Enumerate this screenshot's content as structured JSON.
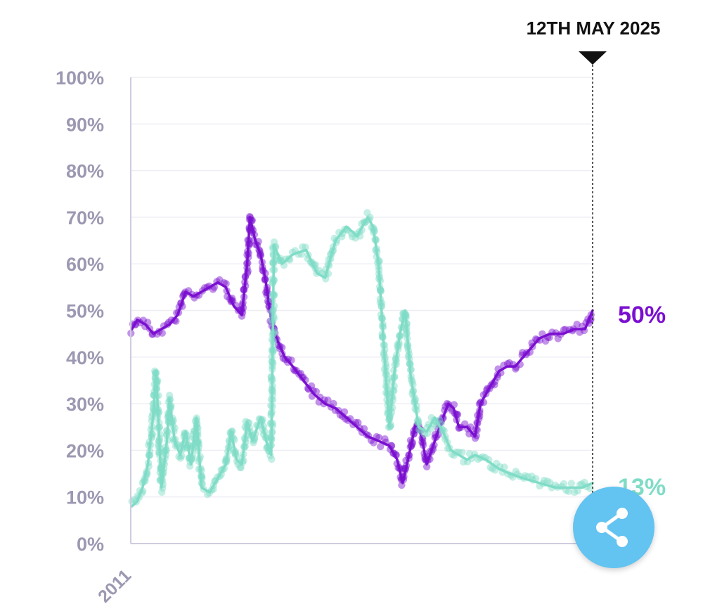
{
  "colors": {
    "purple": "#7b0fd0",
    "teal": "#7fdcc6",
    "axis_text": "#9d98b2",
    "marker_text": "#111111",
    "share_button": "#63c3f1"
  },
  "share": {
    "icon": "share-icon"
  },
  "chart_data": {
    "type": "line",
    "y_unit": "%",
    "ylim": [
      0,
      100
    ],
    "y_ticks": [
      "0%",
      "10%",
      "20%",
      "30%",
      "40%",
      "50%",
      "60%",
      "70%",
      "80%",
      "90%",
      "100%"
    ],
    "x_tick_label": "2011",
    "grid": true,
    "marker": {
      "label": "12TH MAY 2025",
      "date": "2025-05-12"
    },
    "end_labels": {
      "purple": "50%",
      "teal": "13%"
    },
    "series": [
      {
        "key": "purple",
        "points": [
          [
            "2011-01",
            46
          ],
          [
            "2011-03",
            48
          ],
          [
            "2011-06",
            47
          ],
          [
            "2011-09",
            45
          ],
          [
            "2011-12",
            46
          ],
          [
            "2012-03",
            47
          ],
          [
            "2012-06",
            49
          ],
          [
            "2012-09",
            54
          ],
          [
            "2012-12",
            53
          ],
          [
            "2013-03",
            54
          ],
          [
            "2013-06",
            55
          ],
          [
            "2013-09",
            56
          ],
          [
            "2013-12",
            55
          ],
          [
            "2014-03",
            51
          ],
          [
            "2014-06",
            49
          ],
          [
            "2014-08",
            60
          ],
          [
            "2014-09",
            70
          ],
          [
            "2014-11",
            65
          ],
          [
            "2015-01",
            62
          ],
          [
            "2015-03",
            56
          ],
          [
            "2015-05",
            48
          ],
          [
            "2015-07",
            44
          ],
          [
            "2015-10",
            40
          ],
          [
            "2016-01",
            38
          ],
          [
            "2016-05",
            35
          ],
          [
            "2016-09",
            32
          ],
          [
            "2017-01",
            30
          ],
          [
            "2017-05",
            29
          ],
          [
            "2017-09",
            27
          ],
          [
            "2018-01",
            25
          ],
          [
            "2018-05",
            23
          ],
          [
            "2018-09",
            22
          ],
          [
            "2019-01",
            21
          ],
          [
            "2019-04",
            18
          ],
          [
            "2019-06",
            13
          ],
          [
            "2019-08",
            18
          ],
          [
            "2019-11",
            26
          ],
          [
            "2020-01",
            23
          ],
          [
            "2020-03",
            17
          ],
          [
            "2020-06",
            22
          ],
          [
            "2020-09",
            27
          ],
          [
            "2020-11",
            30
          ],
          [
            "2021-01",
            29
          ],
          [
            "2021-03",
            25
          ],
          [
            "2021-06",
            25
          ],
          [
            "2021-09",
            23
          ],
          [
            "2021-11",
            30
          ],
          [
            "2022-03",
            34
          ],
          [
            "2022-06",
            37
          ],
          [
            "2022-09",
            38
          ],
          [
            "2022-12",
            38
          ],
          [
            "2023-03",
            40
          ],
          [
            "2023-06",
            42
          ],
          [
            "2023-09",
            44
          ],
          [
            "2024-01",
            45
          ],
          [
            "2024-06",
            45
          ],
          [
            "2024-10",
            46
          ],
          [
            "2025-02",
            46
          ],
          [
            "2025-05-12",
            50
          ]
        ]
      },
      {
        "key": "teal",
        "points": [
          [
            "2011-01",
            8
          ],
          [
            "2011-03",
            9
          ],
          [
            "2011-05",
            12
          ],
          [
            "2011-07",
            17
          ],
          [
            "2011-09",
            28
          ],
          [
            "2011-10",
            37
          ],
          [
            "2011-11",
            25
          ],
          [
            "2011-12",
            12
          ],
          [
            "2012-02",
            22
          ],
          [
            "2012-03",
            31
          ],
          [
            "2012-05",
            22
          ],
          [
            "2012-07",
            19
          ],
          [
            "2012-09",
            24
          ],
          [
            "2012-11",
            17
          ],
          [
            "2013-01",
            27
          ],
          [
            "2013-03",
            12
          ],
          [
            "2013-06",
            11
          ],
          [
            "2013-09",
            14
          ],
          [
            "2013-12",
            17
          ],
          [
            "2014-02",
            24
          ],
          [
            "2014-04",
            18
          ],
          [
            "2014-06",
            17
          ],
          [
            "2014-08",
            26
          ],
          [
            "2014-10",
            22
          ],
          [
            "2015-01",
            27
          ],
          [
            "2015-04",
            20
          ],
          [
            "2015-05",
            19
          ],
          [
            "2015-06",
            64
          ],
          [
            "2015-09",
            60
          ],
          [
            "2016-01",
            62
          ],
          [
            "2016-06",
            63
          ],
          [
            "2016-10",
            58
          ],
          [
            "2017-01",
            57
          ],
          [
            "2017-05",
            65
          ],
          [
            "2017-09",
            68
          ],
          [
            "2018-01",
            66
          ],
          [
            "2018-05",
            70
          ],
          [
            "2018-07",
            68
          ],
          [
            "2018-09",
            60
          ],
          [
            "2018-11",
            42
          ],
          [
            "2019-01",
            25
          ],
          [
            "2019-03",
            37
          ],
          [
            "2019-05",
            45
          ],
          [
            "2019-07",
            50
          ],
          [
            "2019-09",
            36
          ],
          [
            "2019-12",
            25
          ],
          [
            "2020-03",
            24
          ],
          [
            "2020-06",
            27
          ],
          [
            "2020-09",
            24
          ],
          [
            "2020-12",
            20
          ],
          [
            "2021-03",
            19
          ],
          [
            "2021-06",
            18
          ],
          [
            "2021-09",
            19
          ],
          [
            "2022-01",
            18
          ],
          [
            "2022-06",
            16
          ],
          [
            "2022-10",
            15
          ],
          [
            "2023-03",
            14
          ],
          [
            "2023-09",
            13
          ],
          [
            "2024-03",
            12
          ],
          [
            "2024-09",
            12
          ],
          [
            "2025-01",
            12
          ],
          [
            "2025-05-12",
            13
          ]
        ]
      }
    ]
  }
}
